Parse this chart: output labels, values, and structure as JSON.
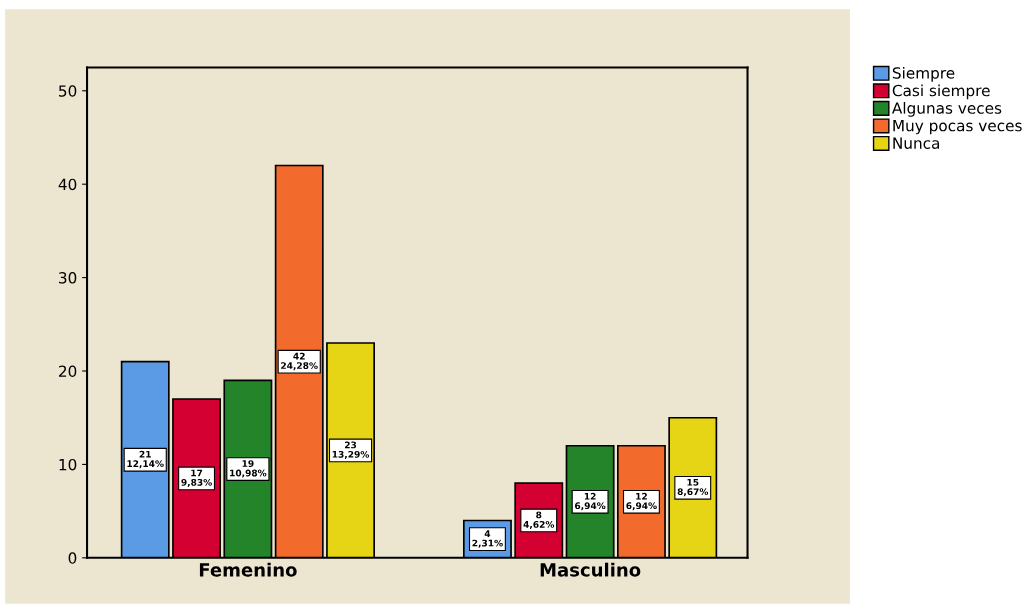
{
  "chart_data": {
    "type": "bar",
    "categories": [
      "Femenino",
      "Masculino"
    ],
    "series": [
      {
        "name": "Siempre",
        "color": "#5b9be6",
        "values": [
          21,
          4
        ],
        "value_labels": [
          "21\n12,14%",
          "4\n2,31%"
        ]
      },
      {
        "name": "Casi siempre",
        "color": "#d40032",
        "values": [
          17,
          8
        ],
        "value_labels": [
          "17\n9,83%",
          "8\n4,62%"
        ]
      },
      {
        "name": "Algunas veces",
        "color": "#23842a",
        "values": [
          19,
          12
        ],
        "value_labels": [
          "19\n10,98%",
          "12\n6,94%"
        ]
      },
      {
        "name": "Muy pocas veces",
        "color": "#f26a2c",
        "values": [
          42,
          12
        ],
        "value_labels": [
          "42\n24,28%",
          "12\n6,94%"
        ]
      },
      {
        "name": "Nunca",
        "color": "#e6d514",
        "values": [
          23,
          15
        ],
        "value_labels": [
          "23\n13,29%",
          "15\n8,67%"
        ]
      }
    ],
    "ylim": [
      0,
      52.5
    ],
    "yticks": [
      0,
      10,
      20,
      30,
      40,
      50
    ],
    "grid": false,
    "legend": "top right"
  }
}
